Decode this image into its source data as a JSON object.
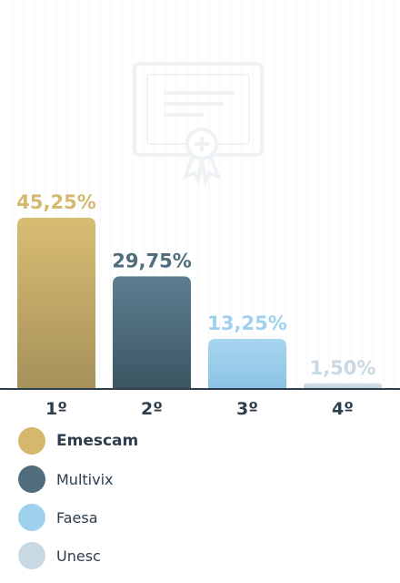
{
  "chart_data": {
    "type": "bar",
    "categories": [
      "1º",
      "2º",
      "3º",
      "4º"
    ],
    "series": [
      {
        "name": "Emescam",
        "value": 45.25,
        "label": "45,25%",
        "color_top": "#d8bd73",
        "color_bottom": "#a6915a",
        "label_color": "#d4b86e"
      },
      {
        "name": "Multivix",
        "value": 29.75,
        "label": "29,75%",
        "color_top": "#5c7f90",
        "color_bottom": "#3c5562",
        "label_color": "#4f6d7d"
      },
      {
        "name": "Faesa",
        "value": 13.25,
        "label": "13,25%",
        "color_top": "#a8d6f1",
        "color_bottom": "#8bc3e4",
        "label_color": "#9fd0ee"
      },
      {
        "name": "Unesc",
        "value": 1.5,
        "label": "1,50%",
        "color_top": "#d3e1ea",
        "color_bottom": "#c4d5e0",
        "label_color": "#c9d9e4"
      }
    ],
    "ylim": [
      0,
      45.25
    ],
    "grid": false,
    "legend_position": "bottom",
    "highlighted": "Emescam"
  },
  "background_icon": "certificate-icon",
  "axis_color": "#2d3e4d"
}
